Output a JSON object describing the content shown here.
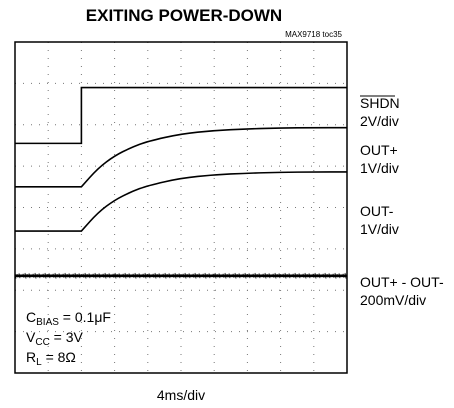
{
  "chart_data": {
    "type": "line",
    "title": "EXITING POWER-DOWN",
    "reference": "MAX9718 toc35",
    "xlabel": "4ms/div",
    "grid": true,
    "divisions": {
      "x": 10,
      "y": 8
    },
    "channels": [
      {
        "name_lines": [
          "SHDN",
          "2V/div"
        ],
        "overbar": true
      },
      {
        "name_lines": [
          "OUT+",
          "1V/div"
        ],
        "overbar": false
      },
      {
        "name_lines": [
          "OUT-",
          "1V/div"
        ],
        "overbar": false
      },
      {
        "name_lines": [
          "OUT+ - OUT-",
          "200mV/div"
        ],
        "overbar": false
      }
    ],
    "series": [
      {
        "name": "SHDN",
        "x": [
          0,
          2.0,
          2.0,
          10
        ],
        "y": [
          5.55,
          5.55,
          6.9,
          6.9
        ]
      },
      {
        "name": "OUT+",
        "x": [
          0,
          2.0,
          2.5,
          3,
          3.5,
          4,
          5,
          6,
          7,
          8,
          9,
          10
        ],
        "y": [
          4.5,
          4.5,
          4.95,
          5.25,
          5.45,
          5.6,
          5.78,
          5.86,
          5.9,
          5.92,
          5.93,
          5.93
        ]
      },
      {
        "name": "OUT-",
        "x": [
          0,
          2.0,
          2.5,
          3,
          3.5,
          4,
          5,
          6,
          7,
          8,
          9,
          10
        ],
        "y": [
          3.43,
          3.43,
          3.88,
          4.18,
          4.38,
          4.53,
          4.71,
          4.79,
          4.83,
          4.85,
          4.86,
          4.86
        ]
      },
      {
        "name": "OUT+ - OUT-",
        "x": [
          0,
          10
        ],
        "y": [
          2.35,
          2.35
        ]
      }
    ],
    "conditions": [
      {
        "main": "C",
        "sub": "BIAS",
        "rest": " = 0.1μF"
      },
      {
        "main": "V",
        "sub": "CC",
        "rest": " = 3V"
      },
      {
        "main": "R",
        "sub": "L",
        "rest": " = 8Ω"
      }
    ]
  }
}
